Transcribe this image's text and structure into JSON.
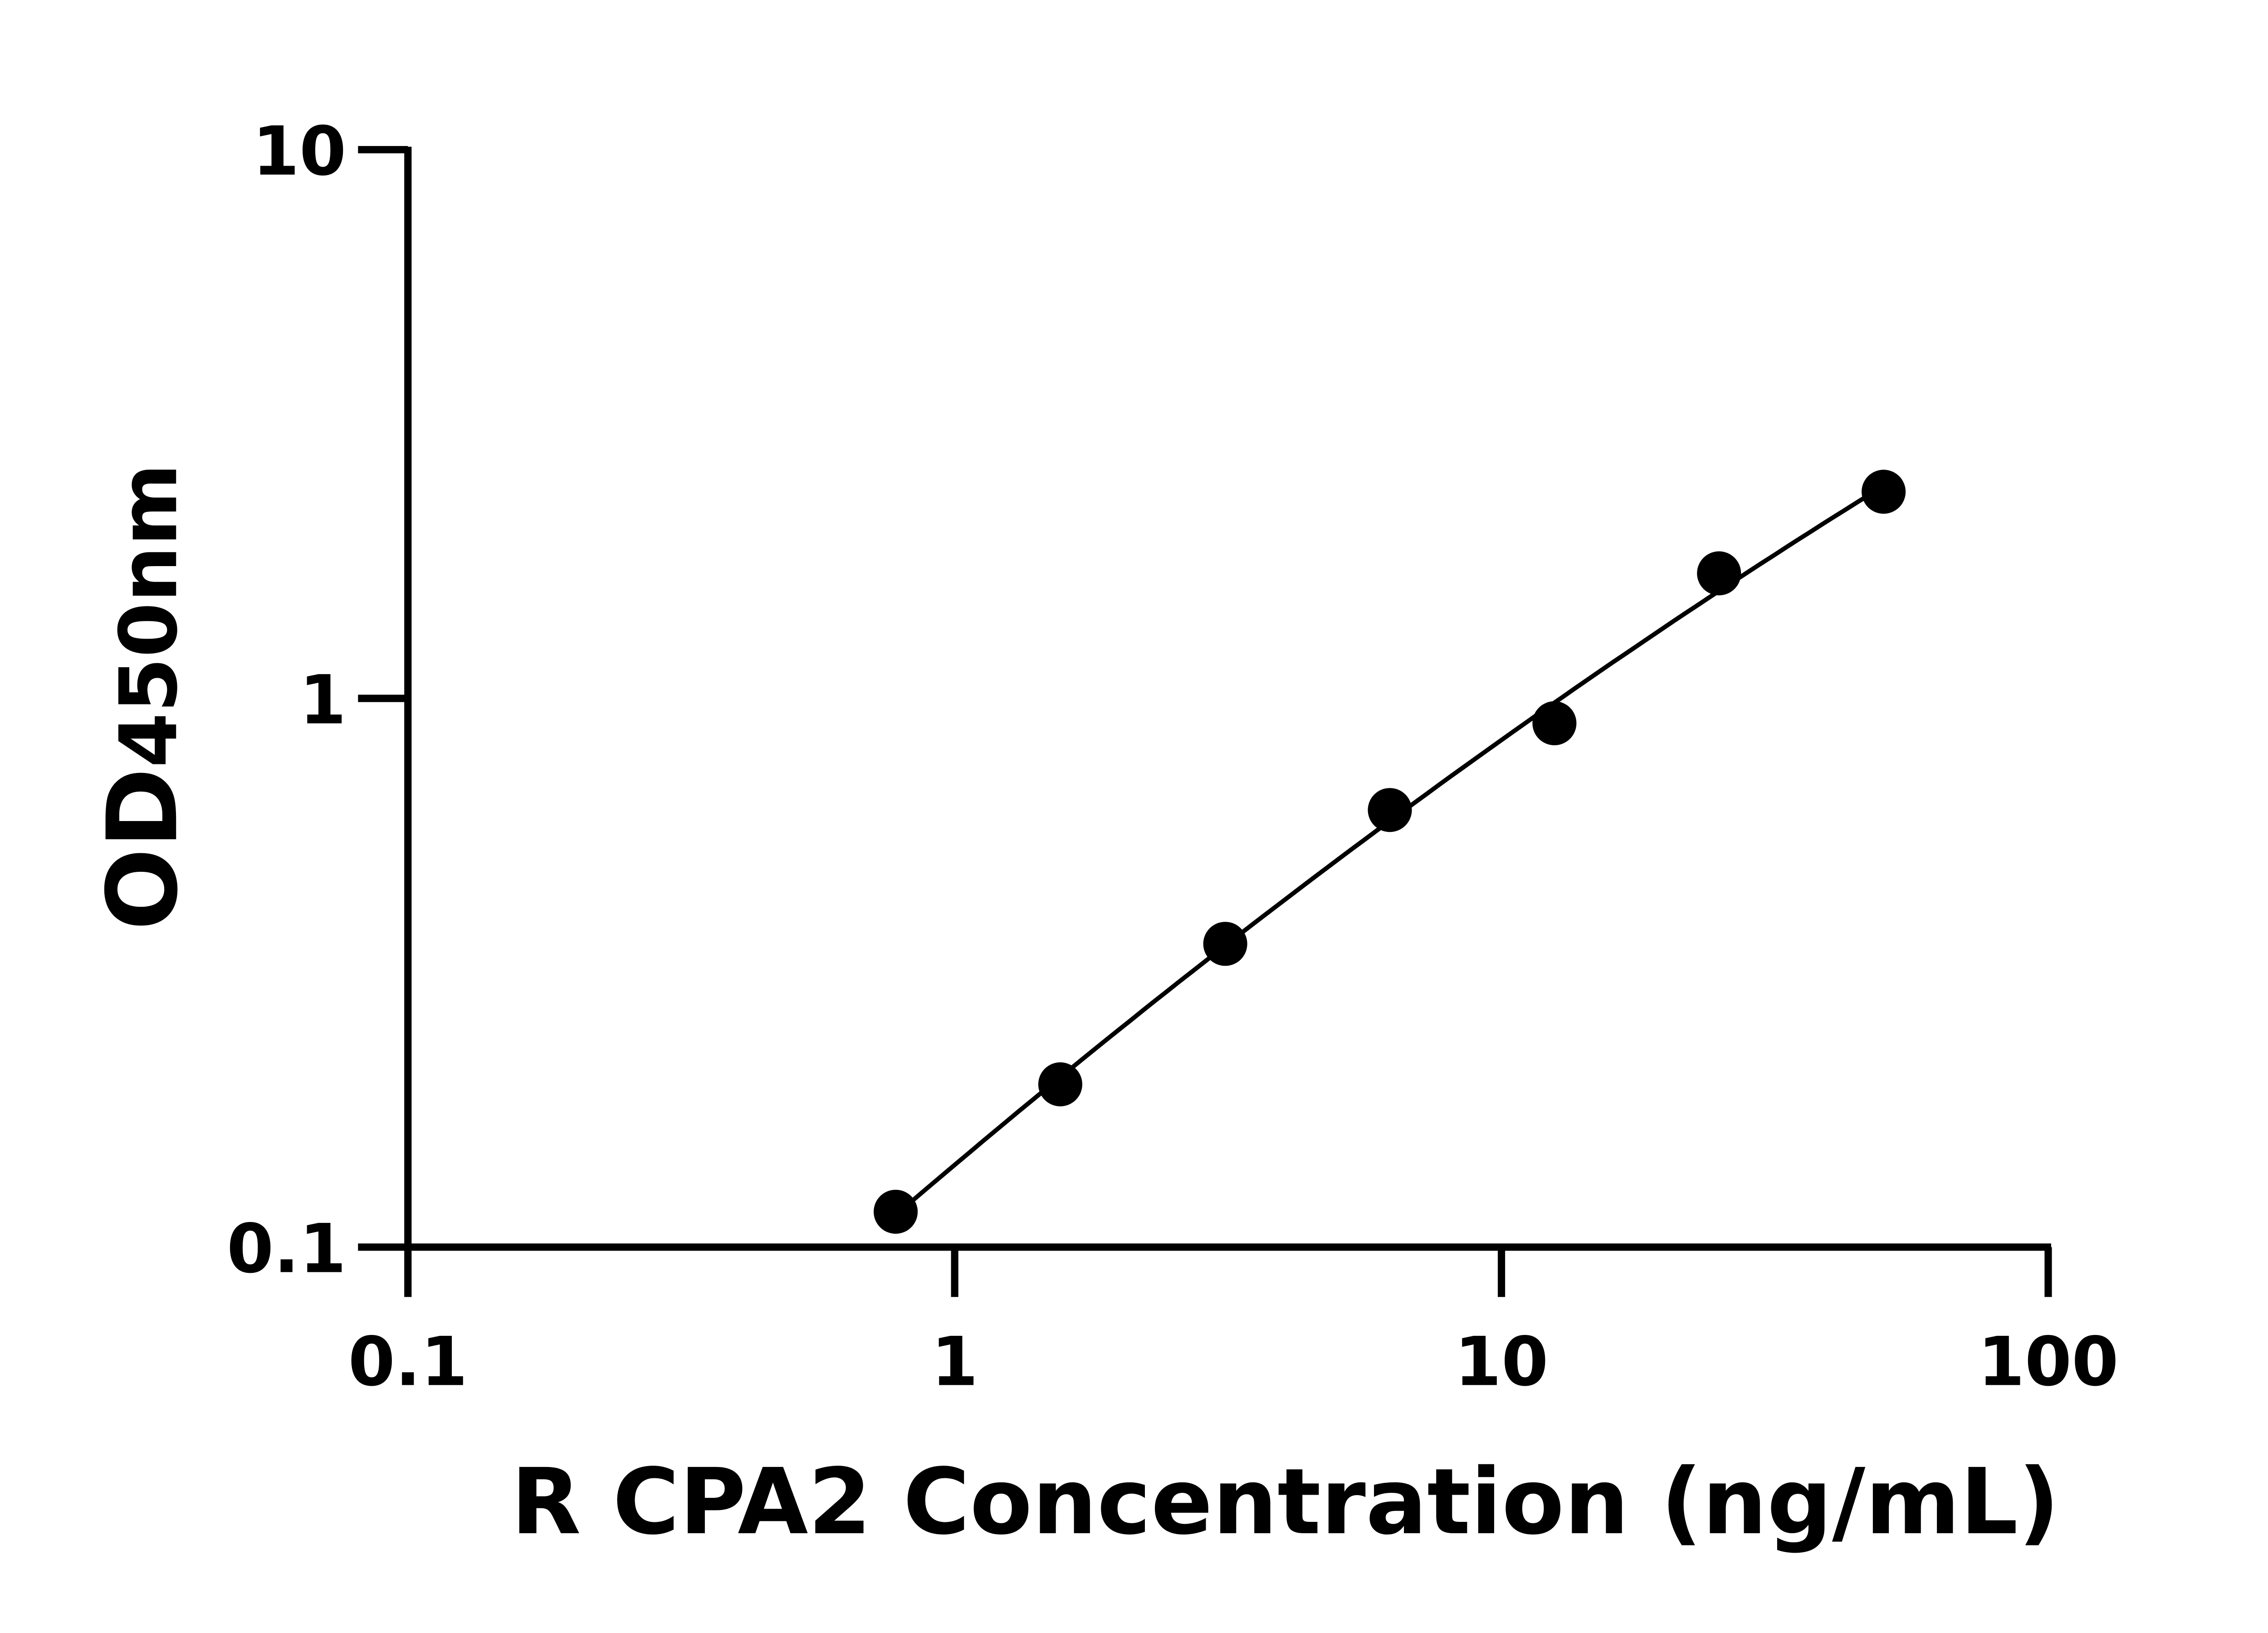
{
  "chart_data": {
    "type": "scatter",
    "title": "",
    "xlabel": "R CPA2 Concentration (ng/mL)",
    "ylabel_main": "OD",
    "ylabel_sub": "450nm",
    "x_scale": "log",
    "y_scale": "log",
    "xlim": [
      0.1,
      100
    ],
    "ylim": [
      0.1,
      10
    ],
    "x_ticks": [
      "0.1",
      "1",
      "10",
      "100"
    ],
    "y_ticks": [
      "0.1",
      "1",
      "10"
    ],
    "grid": false,
    "fit_curve": true,
    "colors": {
      "points": "#000000",
      "line": "#000000"
    },
    "points": [
      {
        "x": 0.78,
        "y": 0.116
      },
      {
        "x": 1.56,
        "y": 0.198
      },
      {
        "x": 3.125,
        "y": 0.357
      },
      {
        "x": 6.25,
        "y": 0.626
      },
      {
        "x": 12.5,
        "y": 0.901
      },
      {
        "x": 25,
        "y": 1.69
      },
      {
        "x": 50,
        "y": 2.38
      }
    ]
  }
}
